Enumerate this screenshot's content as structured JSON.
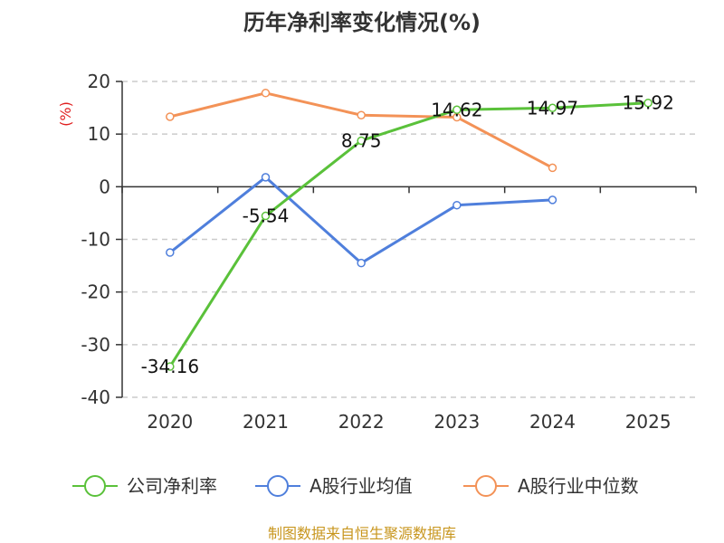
{
  "chart_data": {
    "type": "line",
    "title": "历年净利率变化情况(%)",
    "unit_label": "(%)",
    "categories": [
      "2020",
      "2021",
      "2022",
      "2023",
      "2024",
      "2025"
    ],
    "ylim": [
      -40,
      20
    ],
    "yticks": [
      20,
      10,
      0,
      -10,
      -20,
      -30,
      -40
    ],
    "grid": true,
    "legend_position": "bottom",
    "series": [
      {
        "name": "公司净利率",
        "color": "#5ac13a",
        "values": [
          -34.16,
          -5.54,
          8.75,
          14.62,
          14.97,
          15.92
        ],
        "labels": [
          "-34.16",
          "-5.54",
          "8.75",
          "14.62",
          "14.97",
          "15.92"
        ]
      },
      {
        "name": "A股行业均值",
        "color": "#4f7fdc",
        "values": [
          -12.5,
          1.8,
          -14.5,
          -3.5,
          -2.5,
          null
        ]
      },
      {
        "name": "A股行业中位数",
        "color": "#f39257",
        "values": [
          13.3,
          17.8,
          13.6,
          13.2,
          3.6,
          null
        ]
      }
    ]
  },
  "footer": "制图数据来自恒生聚源数据库"
}
